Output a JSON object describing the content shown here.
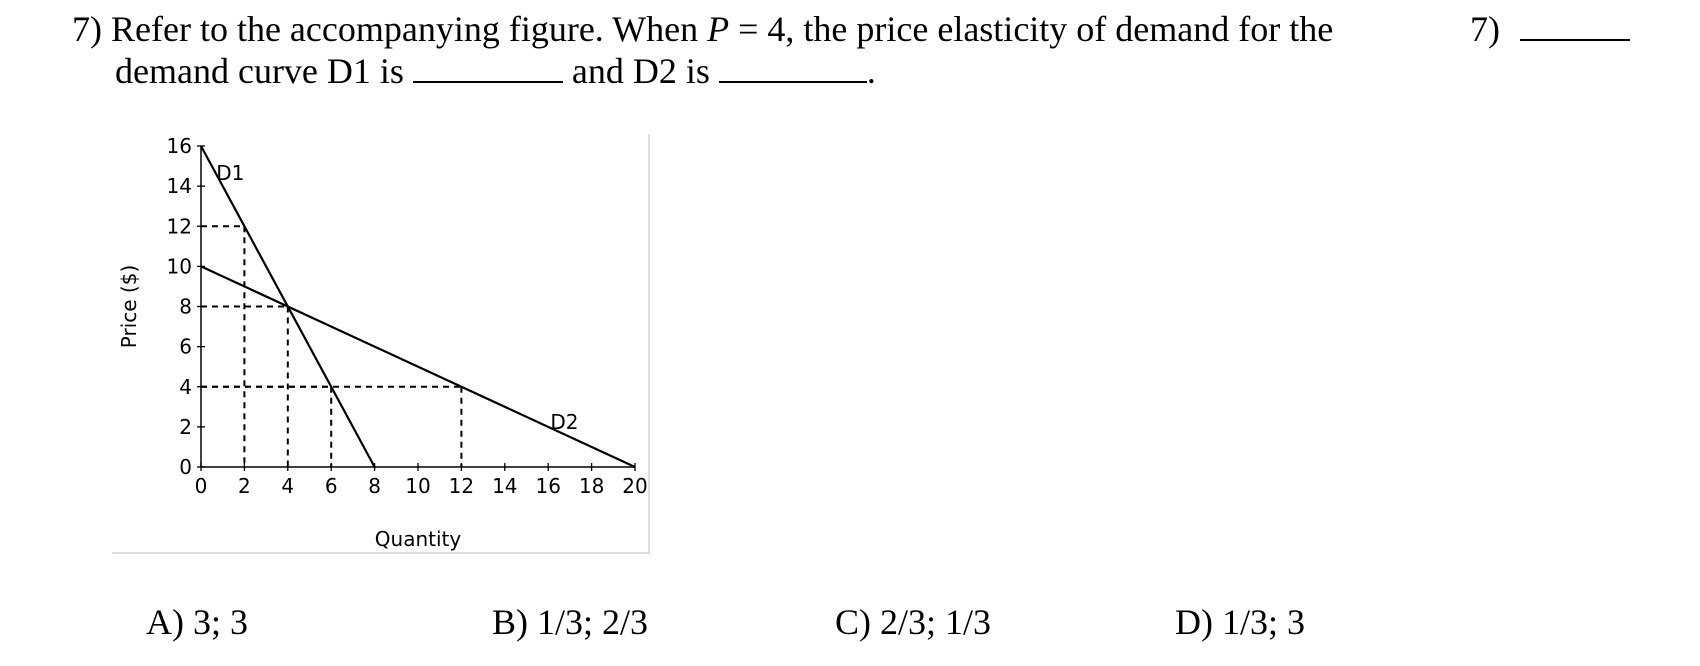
{
  "question": {
    "number_label": "7)",
    "line1_part1": "Refer to the accompanying figure. When ",
    "variable": "P",
    "line1_part2": " = 4, the price elasticity of demand for the",
    "line2_part1": "demand curve D1 is ",
    "line2_part2": " and D2 is ",
    "line2_end": "."
  },
  "answer_slot": {
    "label": "7)"
  },
  "choices": [
    {
      "label": "A) 3; 3"
    },
    {
      "label": "B) 1/3; 2/3"
    },
    {
      "label": "C) 2/3; 1/3"
    },
    {
      "label": "D) 1/3; 3"
    }
  ],
  "chart_data": {
    "type": "line",
    "xlabel": "Quantity",
    "ylabel": "Price ($)",
    "xlim": [
      0,
      20
    ],
    "ylim": [
      0,
      16
    ],
    "x_ticks": [
      0,
      2,
      4,
      6,
      8,
      10,
      12,
      14,
      16,
      18,
      20
    ],
    "y_ticks": [
      0,
      2,
      4,
      6,
      8,
      10,
      12,
      14,
      16
    ],
    "grid": false,
    "series": [
      {
        "name": "D1",
        "x": [
          0,
          8
        ],
        "y": [
          16,
          0
        ]
      },
      {
        "name": "D2",
        "x": [
          0,
          20
        ],
        "y": [
          10,
          0
        ]
      }
    ],
    "reference_points": [
      {
        "x": 2,
        "y": 12
      },
      {
        "x": 4,
        "y": 8
      },
      {
        "x": 6,
        "y": 4
      },
      {
        "x": 12,
        "y": 4
      }
    ],
    "colors": {
      "line": "#000000",
      "frame": "#d6d6d6"
    }
  }
}
